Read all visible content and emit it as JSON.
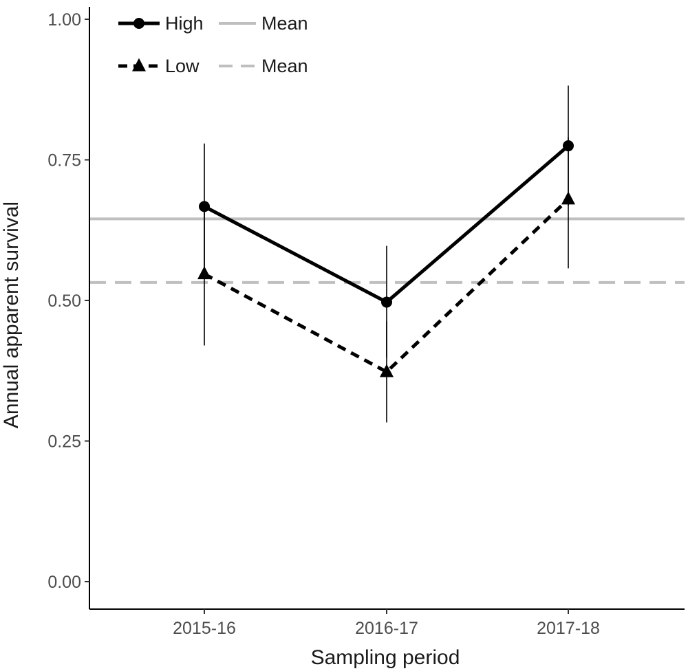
{
  "chart_data": {
    "type": "line",
    "xlabel": "Sampling period",
    "ylabel": "Annual apparent survival",
    "categories": [
      "2015-16",
      "2016-17",
      "2017-18"
    ],
    "ylim": [
      0,
      1
    ],
    "yticks": [
      0,
      0.25,
      0.5,
      0.75,
      1
    ],
    "ytick_labels": [
      "0.00",
      "0.25",
      "0.50",
      "0.75",
      "1.00"
    ],
    "grid": false,
    "legend_position": "top-left",
    "series": [
      {
        "name": "High",
        "values": [
          0.667,
          0.497,
          0.775
        ],
        "lower": [
          0.555,
          0.398,
          0.668
        ],
        "upper": [
          0.779,
          0.597,
          0.882
        ],
        "line_style": "solid",
        "marker": "circle",
        "color": "#000000"
      },
      {
        "name": "Low",
        "values": [
          0.547,
          0.373,
          0.68
        ],
        "lower": [
          0.42,
          0.283,
          0.557
        ],
        "upper": [
          0.665,
          0.463,
          0.79
        ],
        "line_style": "dashed",
        "marker": "triangle",
        "color": "#000000"
      }
    ],
    "reference_lines": [
      {
        "name": "Mean",
        "value": 0.645,
        "line_style": "solid",
        "color": "#bfbfbf"
      },
      {
        "name": "Mean",
        "value": 0.532,
        "line_style": "dashed",
        "color": "#bfbfbf"
      }
    ]
  }
}
